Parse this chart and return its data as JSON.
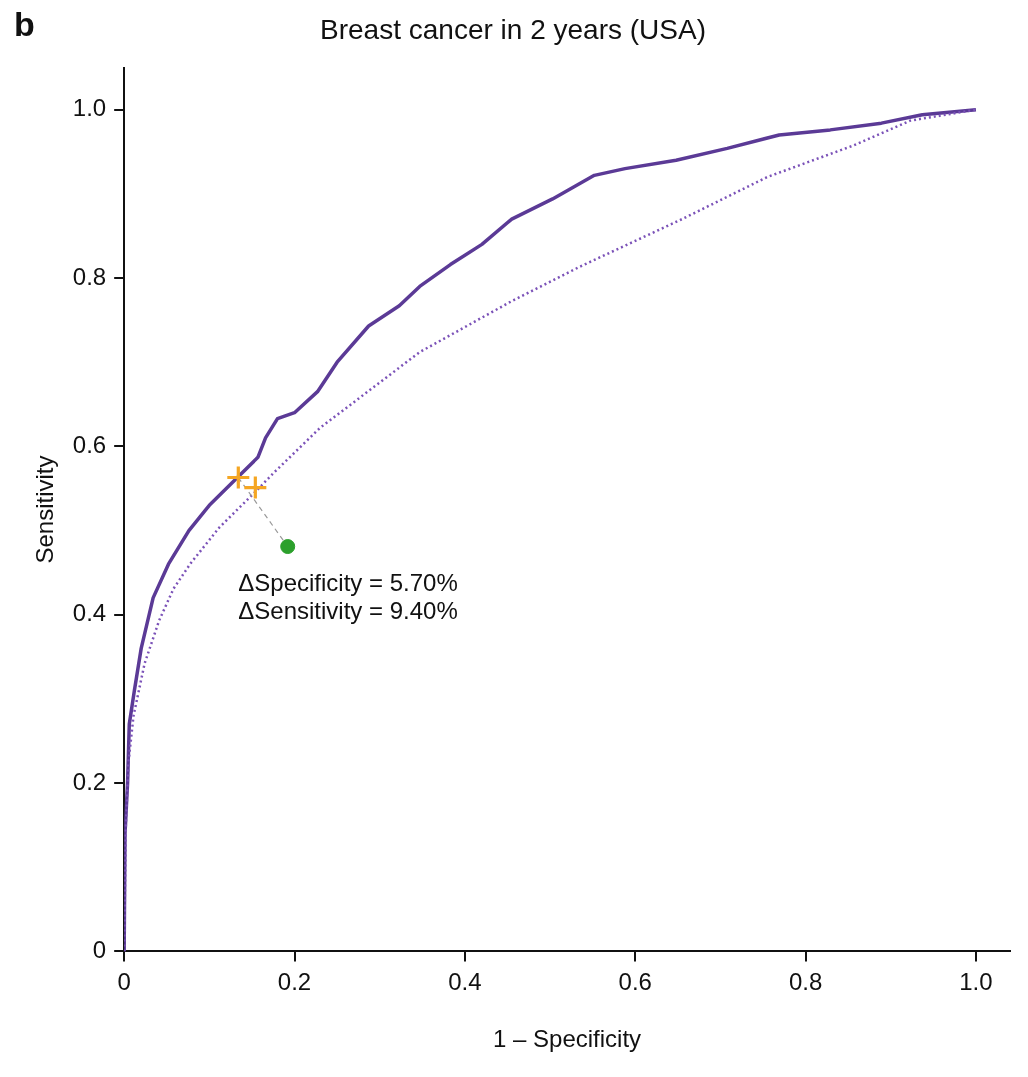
{
  "chart_data": {
    "type": "line",
    "title": "Breast cancer in 2 years (USA)",
    "xlabel": "1 – Specificity",
    "ylabel": "Sensitivity",
    "annotations": [
      "b",
      "ΔSpecificity = 5.70%",
      "ΔSensitivity = 9.40%"
    ],
    "xlim": [
      0,
      1.04
    ],
    "ylim": [
      0,
      1.05
    ],
    "xticks": [
      0,
      0.2,
      0.4,
      0.6,
      0.8,
      {
        "value": 1,
        "label": "1.0"
      }
    ],
    "yticks": [
      0,
      0.2,
      0.4,
      0.6,
      0.8,
      {
        "value": 1,
        "label": "1.0"
      }
    ],
    "grid": false,
    "legend": false,
    "series": [
      {
        "type": "line",
        "color": "#5b3a96",
        "line_style": "solid",
        "marker": "none",
        "x": [
          0,
          0.001,
          0.004,
          0.006,
          0.012,
          0.02,
          0.034,
          0.052,
          0.076,
          0.1,
          0.13,
          0.157,
          0.166,
          0.18,
          0.2,
          0.227,
          0.25,
          0.287,
          0.323,
          0.347,
          0.383,
          0.42,
          0.455,
          0.503,
          0.552,
          0.588,
          0.648,
          0.708,
          0.769,
          0.829,
          0.889,
          0.937,
          1
        ],
        "values": [
          0,
          0.14,
          0.2,
          0.27,
          0.31,
          0.36,
          0.42,
          0.46,
          0.5,
          0.53,
          0.56,
          0.587,
          0.61,
          0.633,
          0.64,
          0.665,
          0.7,
          0.743,
          0.767,
          0.79,
          0.816,
          0.84,
          0.87,
          0.894,
          0.922,
          0.93,
          0.94,
          0.954,
          0.97,
          0.976,
          0.984,
          0.994,
          1
        ]
      },
      {
        "type": "line",
        "color": "#7b52b8",
        "line_style": "dotted",
        "marker": "none",
        "x": [
          0,
          0.002,
          0.005,
          0.011,
          0.024,
          0.041,
          0.058,
          0.078,
          0.112,
          0.154,
          0.176,
          0.23,
          0.347,
          0.454,
          0.534,
          0.655,
          0.755,
          0.855,
          0.923,
          1
        ],
        "values": [
          0,
          0.15,
          0.224,
          0.28,
          0.342,
          0.393,
          0.431,
          0.461,
          0.504,
          0.546,
          0.569,
          0.622,
          0.712,
          0.772,
          0.813,
          0.87,
          0.92,
          0.957,
          0.987,
          1
        ]
      },
      {
        "type": "line",
        "color": "#999999",
        "line_style": "dashed",
        "marker": "none",
        "x": [
          0.134,
          0.192
        ],
        "values": [
          0.563,
          0.481
        ]
      },
      {
        "type": "scatter",
        "color": "#f5a623",
        "marker": "cross",
        "x": [
          0.134,
          0.154
        ],
        "values": [
          0.563,
          0.551
        ]
      },
      {
        "type": "scatter",
        "color": "#2ca02c",
        "marker": "circle",
        "x": [
          0.192
        ],
        "values": [
          0.481
        ]
      }
    ]
  }
}
